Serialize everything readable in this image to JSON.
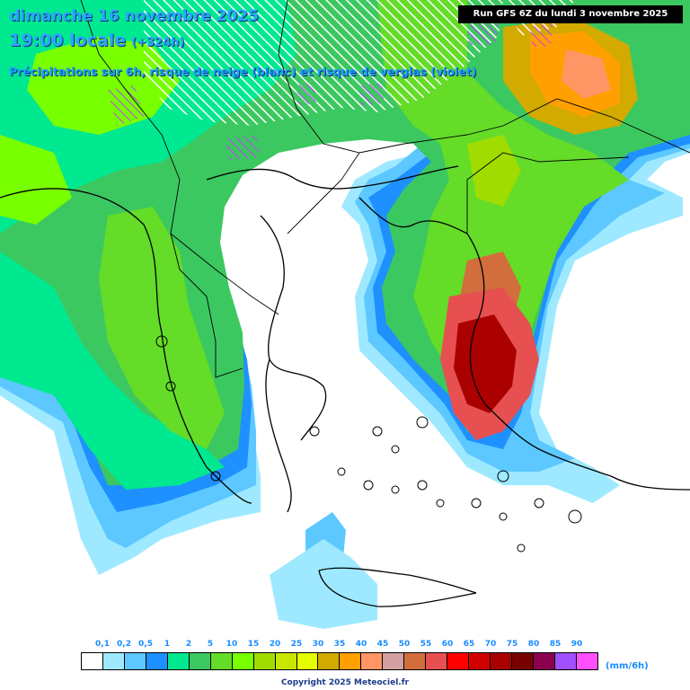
{
  "header": {
    "date": "dimanche 16 novembre 2025",
    "time": "19:00 locale",
    "offset": "(+324h)",
    "subtitle": "Précipitations sur 6h, risque de neige (blanc) et risque de verglas (violet)"
  },
  "run_info": "Run GFS 6Z du lundi 3 novembre 2025",
  "legend": {
    "unit": "(mm/6h)",
    "labels": [
      "0,1",
      "0,2",
      "0,5",
      "1",
      "2",
      "5",
      "10",
      "15",
      "20",
      "25",
      "30",
      "35",
      "40",
      "45",
      "50",
      "55",
      "60",
      "65",
      "70",
      "75",
      "80",
      "85",
      "90"
    ],
    "colors": [
      "#ffffff",
      "#9ee9ff",
      "#5cc8ff",
      "#1e90ff",
      "#00e890",
      "#3cc860",
      "#64dc28",
      "#78ff00",
      "#a0dc00",
      "#c8e600",
      "#e6ff00",
      "#d2aa00",
      "#ffa000",
      "#ff9664",
      "#d2a0a0",
      "#d26e3c",
      "#e65050",
      "#ff0000",
      "#d20000",
      "#aa0000",
      "#780000",
      "#8c0050",
      "#a050ff",
      "#ff50ff"
    ]
  },
  "copyright": "Copyright 2025 Meteociel.fr"
}
